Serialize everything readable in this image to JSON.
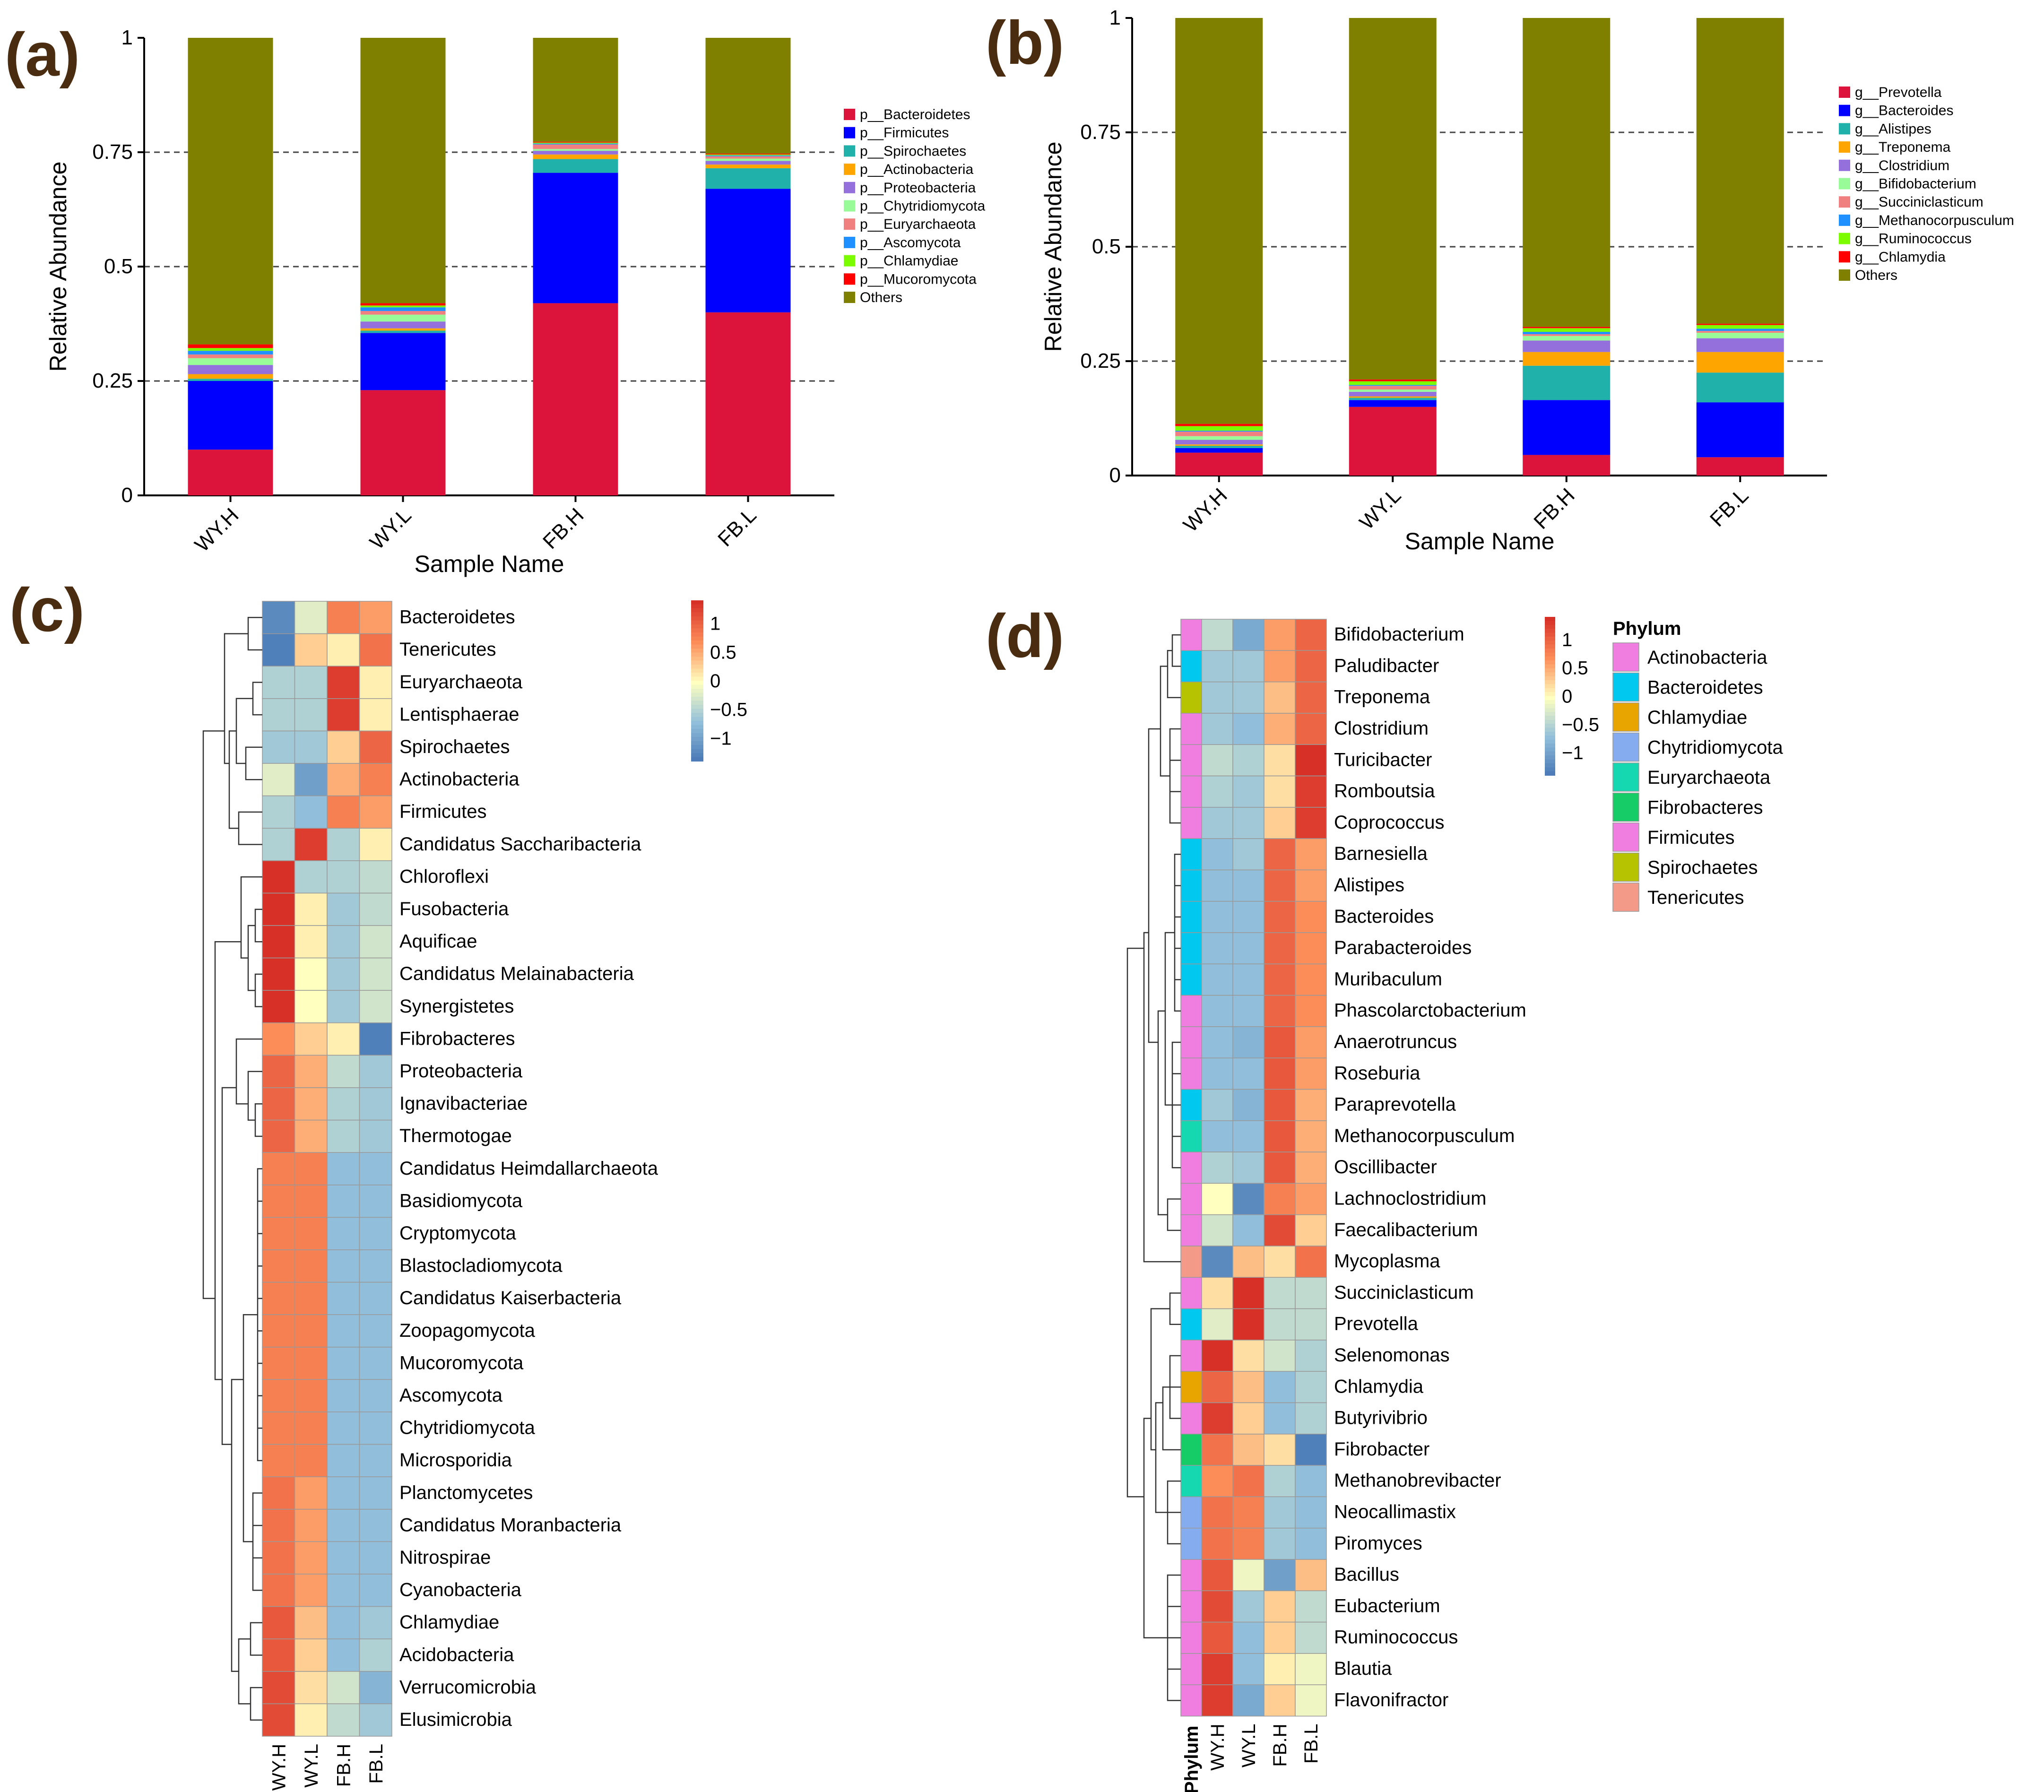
{
  "panels": {
    "a": "(a)",
    "b": "(b)",
    "c": "(c)",
    "d": "(d)"
  },
  "chart_data": [
    {
      "id": "a",
      "type": "bar",
      "stacked": true,
      "title": "",
      "xlabel": "Sample Name",
      "ylabel": "Relative Abundance",
      "ylim": [
        0,
        1
      ],
      "yticks": [
        "0",
        "0.25",
        "0.5",
        "0.75",
        "1"
      ],
      "grid": "dashed at 0.25, 0.5, 0.75",
      "legend_position": "right",
      "categories": [
        "WY.H",
        "WY.L",
        "FB.H",
        "FB.L"
      ],
      "series": [
        {
          "name": "p__Bacteroidetes",
          "color": "#dc143c",
          "values": [
            0.1,
            0.23,
            0.42,
            0.4
          ]
        },
        {
          "name": "p__Firmicutes",
          "color": "#0000ff",
          "values": [
            0.15,
            0.125,
            0.285,
            0.27
          ]
        },
        {
          "name": "p__Spirochaetes",
          "color": "#20b2aa",
          "values": [
            0.005,
            0.005,
            0.03,
            0.045
          ]
        },
        {
          "name": "p__Actinobacteria",
          "color": "#ffa500",
          "values": [
            0.01,
            0.005,
            0.01,
            0.008
          ]
        },
        {
          "name": "p__Proteobacteria",
          "color": "#9370db",
          "values": [
            0.02,
            0.015,
            0.008,
            0.008
          ]
        },
        {
          "name": "p__Chytridiomycota",
          "color": "#98fb98",
          "values": [
            0.015,
            0.015,
            0.004,
            0.005
          ]
        },
        {
          "name": "p__Euryarchaeota",
          "color": "#f08080",
          "values": [
            0.008,
            0.008,
            0.01,
            0.005
          ]
        },
        {
          "name": "p__Ascomycota",
          "color": "#1e90ff",
          "values": [
            0.008,
            0.008,
            0.002,
            0.002
          ]
        },
        {
          "name": "p__Chlamydiae",
          "color": "#7cfc00",
          "values": [
            0.006,
            0.004,
            0.002,
            0.002
          ]
        },
        {
          "name": "p__Mucoromycota",
          "color": "#ff0000",
          "values": [
            0.008,
            0.005,
            0.002,
            0.002
          ]
        },
        {
          "name": "Others",
          "color": "#808000",
          "values": [
            0.67,
            0.58,
            0.227,
            0.253
          ]
        }
      ]
    },
    {
      "id": "b",
      "type": "bar",
      "stacked": true,
      "title": "",
      "xlabel": "Sample Name",
      "ylabel": "Relative Abundance",
      "ylim": [
        0,
        1
      ],
      "yticks": [
        "0",
        "0.25",
        "0.5",
        "0.75",
        "1"
      ],
      "grid": "dashed at 0.25, 0.5, 0.75",
      "legend_position": "right",
      "categories": [
        "WY.H",
        "WY.L",
        "FB.H",
        "FB.L"
      ],
      "series": [
        {
          "name": "g__Prevotella",
          "color": "#dc143c",
          "values": [
            0.05,
            0.15,
            0.045,
            0.04
          ]
        },
        {
          "name": "g__Bacteroides",
          "color": "#0000ff",
          "values": [
            0.01,
            0.015,
            0.12,
            0.12
          ]
        },
        {
          "name": "g__Alistipes",
          "color": "#20b2aa",
          "values": [
            0.005,
            0.005,
            0.075,
            0.065
          ]
        },
        {
          "name": "g__Treponema",
          "color": "#ffa500",
          "values": [
            0.003,
            0.003,
            0.03,
            0.045
          ]
        },
        {
          "name": "g__Clostridium",
          "color": "#9370db",
          "values": [
            0.01,
            0.01,
            0.025,
            0.03
          ]
        },
        {
          "name": "g__Bifidobacterium",
          "color": "#98fb98",
          "values": [
            0.008,
            0.005,
            0.01,
            0.012
          ]
        },
        {
          "name": "g__Succiniclasticum",
          "color": "#f08080",
          "values": [
            0.01,
            0.008,
            0.004,
            0.004
          ]
        },
        {
          "name": "g__Methanocorpusculum",
          "color": "#1e90ff",
          "values": [
            0.002,
            0.002,
            0.005,
            0.005
          ]
        },
        {
          "name": "g__Ruminococcus",
          "color": "#7cfc00",
          "values": [
            0.01,
            0.008,
            0.008,
            0.008
          ]
        },
        {
          "name": "g__Chlamydia",
          "color": "#ff0000",
          "values": [
            0.005,
            0.004,
            0.003,
            0.003
          ]
        },
        {
          "name": "Others",
          "color": "#808000",
          "values": [
            0.887,
            0.79,
            0.675,
            0.668
          ]
        }
      ]
    },
    {
      "id": "c",
      "type": "heatmap",
      "columns": [
        "WY.H",
        "WY.L",
        "FB.H",
        "FB.L"
      ],
      "rows": [
        "Bacteroidetes",
        "Tenericutes",
        "Euryarchaeota",
        "Lentisphaerae",
        "Spirochaetes",
        "Actinobacteria",
        "Firmicutes",
        "Candidatus Saccharibacteria",
        "Chloroflexi",
        "Fusobacteria",
        "Aquificae",
        "Candidatus Melainabacteria",
        "Synergistetes",
        "Fibrobacteres",
        "Proteobacteria",
        "Ignavibacteriae",
        "Thermotogae",
        "Candidatus Heimdallarchaeota",
        "Basidiomycota",
        "Cryptomycota",
        "Blastocladiomycota",
        "Candidatus Kaiserbacteria",
        "Zoopagomycota",
        "Mucoromycota",
        "Ascomycota",
        "Chytridiomycota",
        "Microsporidia",
        "Planctomycetes",
        "Candidatus Moranbacteria",
        "Nitrospirae",
        "Cyanobacteria",
        "Chlamydiae",
        "Acidobacteria",
        "Verrucomicrobia",
        "Elusimicrobia"
      ],
      "values": [
        [
          -1.2,
          -0.2,
          0.8,
          0.6
        ],
        [
          -1.3,
          0.3,
          0.1,
          0.9
        ],
        [
          -0.5,
          -0.5,
          1.3,
          0.1
        ],
        [
          -0.5,
          -0.5,
          1.3,
          0.1
        ],
        [
          -0.6,
          -0.6,
          0.3,
          1.0
        ],
        [
          -0.2,
          -1.0,
          0.5,
          0.8
        ],
        [
          -0.5,
          -0.7,
          0.8,
          0.6
        ],
        [
          -0.5,
          1.3,
          -0.5,
          0.1
        ],
        [
          1.4,
          -0.5,
          -0.5,
          -0.4
        ],
        [
          1.4,
          0.1,
          -0.6,
          -0.4
        ],
        [
          1.4,
          0.1,
          -0.6,
          -0.3
        ],
        [
          1.4,
          0.0,
          -0.6,
          -0.3
        ],
        [
          1.4,
          0.0,
          -0.6,
          -0.3
        ],
        [
          0.7,
          0.3,
          0.1,
          -1.3
        ],
        [
          1.0,
          0.5,
          -0.4,
          -0.6
        ],
        [
          1.0,
          0.5,
          -0.5,
          -0.6
        ],
        [
          1.0,
          0.5,
          -0.5,
          -0.6
        ],
        [
          0.8,
          0.8,
          -0.7,
          -0.7
        ],
        [
          0.8,
          0.8,
          -0.7,
          -0.7
        ],
        [
          0.8,
          0.8,
          -0.7,
          -0.7
        ],
        [
          0.8,
          0.8,
          -0.7,
          -0.7
        ],
        [
          0.8,
          0.8,
          -0.7,
          -0.7
        ],
        [
          0.8,
          0.8,
          -0.7,
          -0.7
        ],
        [
          0.8,
          0.8,
          -0.7,
          -0.7
        ],
        [
          0.8,
          0.8,
          -0.7,
          -0.7
        ],
        [
          0.8,
          0.8,
          -0.7,
          -0.7
        ],
        [
          0.8,
          0.8,
          -0.7,
          -0.7
        ],
        [
          0.9,
          0.6,
          -0.7,
          -0.7
        ],
        [
          0.9,
          0.6,
          -0.7,
          -0.7
        ],
        [
          0.9,
          0.6,
          -0.7,
          -0.7
        ],
        [
          0.9,
          0.6,
          -0.7,
          -0.7
        ],
        [
          1.1,
          0.4,
          -0.7,
          -0.6
        ],
        [
          1.1,
          0.3,
          -0.7,
          -0.5
        ],
        [
          1.2,
          0.2,
          -0.3,
          -0.8
        ],
        [
          1.2,
          0.1,
          -0.4,
          -0.6
        ]
      ],
      "colorbar_ticks": [
        "1",
        "0.5",
        "0",
        "−0.5",
        "−1"
      ],
      "colorbar_values": [
        1,
        0.5,
        0,
        -0.5,
        -1
      ]
    },
    {
      "id": "d",
      "type": "heatmap",
      "columns": [
        "WY.H",
        "WY.L",
        "FB.H",
        "FB.L"
      ],
      "annotation_column": "Phylum",
      "rows": [
        "Bifidobacterium",
        "Paludibacter",
        "Treponema",
        "Clostridium",
        "Turicibacter",
        "Romboutsia",
        "Coprococcus",
        "Barnesiella",
        "Alistipes",
        "Bacteroides",
        "Parabacteroides",
        "Muribaculum",
        "Phascolarctobacterium",
        "Anaerotruncus",
        "Roseburia",
        "Paraprevotella",
        "Methanocorpusculum",
        "Oscillibacter",
        "Lachnoclostridium",
        "Faecalibacterium",
        "Mycoplasma",
        "Succiniclasticum",
        "Prevotella",
        "Selenomonas",
        "Chlamydia",
        "Butyrivibrio",
        "Fibrobacter",
        "Methanobrevibacter",
        "Neocallimastix",
        "Piromyces",
        "Bacillus",
        "Eubacterium",
        "Ruminococcus",
        "Blautia",
        "Flavonifractor"
      ],
      "row_phylum": [
        "Actinobacteria",
        "Bacteroidetes",
        "Spirochaetes",
        "Firmicutes",
        "Firmicutes",
        "Firmicutes",
        "Firmicutes",
        "Bacteroidetes",
        "Bacteroidetes",
        "Bacteroidetes",
        "Bacteroidetes",
        "Bacteroidetes",
        "Firmicutes",
        "Firmicutes",
        "Firmicutes",
        "Bacteroidetes",
        "Euryarchaeota",
        "Firmicutes",
        "Firmicutes",
        "Firmicutes",
        "Tenericutes",
        "Firmicutes",
        "Bacteroidetes",
        "Firmicutes",
        "Chlamydiae",
        "Firmicutes",
        "Fibrobacteres",
        "Euryarchaeota",
        "Chytridiomycota",
        "Chytridiomycota",
        "Firmicutes",
        "Firmicutes",
        "Firmicutes",
        "Firmicutes",
        "Firmicutes"
      ],
      "values": [
        [
          -0.4,
          -0.9,
          0.6,
          1.0
        ],
        [
          -0.6,
          -0.6,
          0.6,
          1.0
        ],
        [
          -0.6,
          -0.6,
          0.4,
          1.0
        ],
        [
          -0.6,
          -0.7,
          0.5,
          1.0
        ],
        [
          -0.4,
          -0.5,
          0.2,
          1.4
        ],
        [
          -0.5,
          -0.6,
          0.2,
          1.3
        ],
        [
          -0.6,
          -0.6,
          0.3,
          1.3
        ],
        [
          -0.7,
          -0.6,
          1.0,
          0.6
        ],
        [
          -0.7,
          -0.7,
          1.0,
          0.6
        ],
        [
          -0.7,
          -0.7,
          1.0,
          0.7
        ],
        [
          -0.7,
          -0.7,
          1.0,
          0.7
        ],
        [
          -0.7,
          -0.7,
          1.0,
          0.7
        ],
        [
          -0.7,
          -0.7,
          1.0,
          0.7
        ],
        [
          -0.7,
          -0.8,
          1.1,
          0.6
        ],
        [
          -0.7,
          -0.7,
          1.1,
          0.6
        ],
        [
          -0.6,
          -0.8,
          1.1,
          0.5
        ],
        [
          -0.7,
          -0.7,
          1.1,
          0.5
        ],
        [
          -0.5,
          -0.6,
          1.1,
          0.5
        ],
        [
          0.0,
          -1.2,
          0.8,
          0.6
        ],
        [
          -0.3,
          -0.7,
          1.2,
          0.3
        ],
        [
          -1.2,
          0.4,
          0.2,
          0.9
        ],
        [
          0.2,
          1.4,
          -0.4,
          -0.4
        ],
        [
          -0.2,
          1.4,
          -0.4,
          -0.4
        ],
        [
          1.4,
          0.2,
          -0.3,
          -0.5
        ],
        [
          1.0,
          0.4,
          -0.7,
          -0.5
        ],
        [
          1.3,
          0.3,
          -0.7,
          -0.5
        ],
        [
          0.9,
          0.4,
          0.2,
          -1.3
        ],
        [
          0.7,
          0.9,
          -0.5,
          -0.7
        ],
        [
          0.9,
          0.8,
          -0.6,
          -0.7
        ],
        [
          0.9,
          0.8,
          -0.6,
          -0.7
        ],
        [
          1.1,
          -0.1,
          -1.0,
          0.4
        ],
        [
          1.2,
          -0.6,
          0.3,
          -0.4
        ],
        [
          1.1,
          -0.7,
          0.3,
          -0.4
        ],
        [
          1.3,
          -0.7,
          0.1,
          -0.1
        ],
        [
          1.3,
          -0.9,
          0.3,
          -0.1
        ]
      ],
      "colorbar_ticks": [
        "1",
        "0.5",
        "0",
        "−0.5",
        "−1"
      ],
      "colorbar_values": [
        1,
        0.5,
        0,
        -0.5,
        -1
      ],
      "legend_title": "Phylum",
      "legend": [
        {
          "name": "Actinobacteria",
          "color": "#f07ee0"
        },
        {
          "name": "Bacteroidetes",
          "color": "#00c8ee"
        },
        {
          "name": "Chlamydiae",
          "color": "#e8a500"
        },
        {
          "name": "Chytridiomycota",
          "color": "#86acf0"
        },
        {
          "name": "Euryarchaeota",
          "color": "#16d8b0"
        },
        {
          "name": "Fibrobacteres",
          "color": "#16cc66"
        },
        {
          "name": "Firmicutes",
          "color": "#f07ee0"
        },
        {
          "name": "Spirochaetes",
          "color": "#b5c300"
        },
        {
          "name": "Tenericutes",
          "color": "#f39a88"
        }
      ]
    }
  ]
}
